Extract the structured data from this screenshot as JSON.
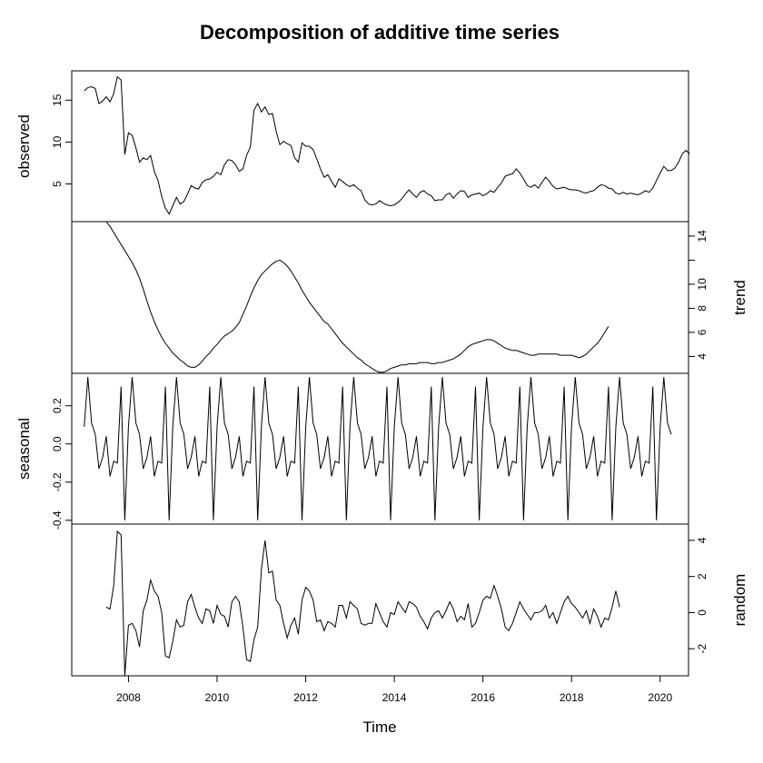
{
  "chart_data": {
    "type": "line",
    "title": "Decomposition of additive time series",
    "xlabel": "Time",
    "xlim": [
      2006.72,
      2020.64
    ],
    "xticks": [
      "2008",
      "2010",
      "2012",
      "2014",
      "2016",
      "2018",
      "2020"
    ],
    "frequency": 12,
    "panels": [
      {
        "name": "observed",
        "ylabel": "observed",
        "axis_side": "left",
        "ylim": [
          0.5,
          18.5
        ],
        "yticks": [
          "5",
          "10",
          "15"
        ],
        "start": 2007.0,
        "values": [
          16.1,
          16.5,
          16.6,
          16.4,
          14.6,
          14.9,
          15.4,
          14.8,
          15.8,
          17.8,
          17.4,
          8.5,
          11.1,
          10.8,
          9.3,
          7.6,
          8.1,
          7.9,
          8.4,
          6.5,
          5.4,
          3.5,
          2.1,
          1.4,
          2.4,
          3.4,
          2.6,
          2.9,
          3.8,
          4.8,
          4.5,
          4.4,
          5.2,
          5.5,
          5.6,
          5.9,
          6.4,
          6.1,
          7.3,
          7.9,
          7.8,
          7.3,
          6.5,
          6.8,
          8.4,
          9.4,
          13.8,
          14.6,
          13.6,
          14.2,
          13.3,
          13.4,
          11.3,
          9.7,
          10.1,
          9.8,
          9.6,
          8.1,
          7.6,
          9.9,
          9.5,
          9.5,
          9.1,
          8.0,
          6.8,
          5.8,
          6.1,
          5.3,
          4.6,
          5.6,
          5.3,
          4.9,
          4.7,
          4.9,
          4.5,
          4.2,
          3.1,
          2.6,
          2.5,
          2.6,
          3.0,
          2.7,
          2.5,
          2.4,
          2.5,
          2.8,
          3.2,
          3.8,
          4.3,
          3.8,
          3.4,
          4.0,
          4.2,
          3.8,
          3.6,
          3.0,
          3.1,
          3.1,
          3.7,
          3.9,
          3.3,
          3.8,
          4.2,
          4.1,
          3.4,
          3.7,
          3.8,
          3.9,
          3.6,
          3.8,
          4.2,
          4.0,
          4.6,
          5.1,
          5.9,
          6.1,
          6.2,
          6.8,
          6.3,
          5.6,
          4.8,
          4.6,
          4.9,
          4.5,
          5.2,
          5.8,
          5.3,
          4.7,
          4.4,
          4.5,
          4.6,
          4.4,
          4.3,
          4.3,
          4.2,
          4.0,
          3.9,
          4.1,
          4.2,
          4.6,
          4.9,
          4.8,
          4.5,
          4.4,
          3.9,
          3.8,
          4.0,
          3.8,
          3.9,
          3.8,
          3.7,
          3.9,
          4.2,
          4.0,
          4.5,
          5.4,
          6.3,
          7.1,
          6.6,
          6.6,
          6.9,
          7.6,
          8.6,
          9.0,
          8.6
        ]
      },
      {
        "name": "trend",
        "ylabel": "trend",
        "axis_side": "right",
        "ylim": [
          2.6,
          15.2
        ],
        "yticks": [
          "4",
          "6",
          "8",
          "10",
          "12",
          "14"
        ],
        "yticks_labeled": [
          "4",
          "6",
          "8",
          "10",
          "14"
        ],
        "start": 2007.5,
        "values": [
          15.2,
          14.8,
          14.3,
          13.8,
          13.3,
          12.8,
          12.3,
          11.8,
          11.2,
          10.5,
          9.6,
          8.6,
          7.7,
          6.9,
          6.2,
          5.6,
          5.1,
          4.7,
          4.3,
          4.0,
          3.7,
          3.5,
          3.2,
          3.1,
          3.1,
          3.3,
          3.6,
          4.0,
          4.3,
          4.7,
          5.0,
          5.4,
          5.7,
          5.9,
          6.1,
          6.4,
          6.8,
          7.5,
          8.2,
          9.0,
          9.7,
          10.3,
          10.8,
          11.1,
          11.4,
          11.7,
          11.9,
          12.0,
          11.8,
          11.5,
          11.1,
          10.6,
          10.1,
          9.5,
          9.0,
          8.5,
          8.1,
          7.7,
          7.3,
          6.9,
          6.7,
          6.3,
          5.9,
          5.5,
          5.1,
          4.8,
          4.5,
          4.2,
          3.9,
          3.7,
          3.4,
          3.2,
          3.0,
          2.8,
          2.7,
          2.7,
          2.8,
          3.0,
          3.1,
          3.2,
          3.3,
          3.3,
          3.4,
          3.4,
          3.4,
          3.5,
          3.5,
          3.5,
          3.4,
          3.4,
          3.5,
          3.5,
          3.6,
          3.7,
          3.8,
          4.0,
          4.2,
          4.5,
          4.8,
          5.0,
          5.1,
          5.2,
          5.3,
          5.4,
          5.4,
          5.3,
          5.1,
          4.9,
          4.7,
          4.6,
          4.5,
          4.5,
          4.4,
          4.3,
          4.2,
          4.1,
          4.1,
          4.2,
          4.2,
          4.2,
          4.2,
          4.2,
          4.2,
          4.1,
          4.1,
          4.1,
          4.1,
          4.0,
          3.9,
          4.0,
          4.2,
          4.5,
          4.8,
          5.1,
          5.5,
          6.0,
          6.5
        ]
      },
      {
        "name": "seasonal",
        "ylabel": "seasonal",
        "axis_side": "left",
        "ylim": [
          -0.42,
          0.37
        ],
        "yticks": [
          "-0.4",
          "-0.2",
          "0.0",
          "0.2"
        ],
        "start": 2007.0,
        "pattern": [
          0.09,
          0.35,
          0.11,
          0.05,
          -0.13,
          -0.07,
          0.04,
          -0.17,
          -0.09,
          -0.1,
          0.3,
          -0.4
        ]
      },
      {
        "name": "random",
        "ylabel": "random",
        "axis_side": "right",
        "ylim": [
          -3.5,
          4.9
        ],
        "yticks": [
          "-2",
          "0",
          "2",
          "4"
        ],
        "start": 2007.5,
        "values": [
          0.3,
          0.2,
          1.5,
          4.5,
          4.3,
          -3.5,
          -0.7,
          -0.6,
          -1.0,
          -1.9,
          0.1,
          0.7,
          1.8,
          1.2,
          0.9,
          0.0,
          -2.4,
          -2.5,
          -1.6,
          -0.4,
          -0.8,
          -0.7,
          0.6,
          1.0,
          0.3,
          -0.3,
          -0.6,
          0.2,
          0.1,
          -0.6,
          0.4,
          -0.1,
          -0.2,
          -0.8,
          0.6,
          0.9,
          0.6,
          -0.8,
          -2.6,
          -2.7,
          -1.5,
          -0.8,
          2.4,
          4.0,
          2.2,
          2.3,
          0.7,
          0.4,
          -0.6,
          -1.4,
          -0.7,
          -0.3,
          -1.2,
          0.7,
          1.4,
          1.2,
          0.7,
          -0.5,
          -0.4,
          -1.0,
          -0.5,
          -0.6,
          -0.8,
          0.4,
          0.4,
          -0.3,
          0.6,
          0.4,
          0.2,
          -0.6,
          -0.7,
          -0.6,
          -0.6,
          0.5,
          0.0,
          -0.5,
          -0.8,
          0.0,
          -0.1,
          0.6,
          0.3,
          0.0,
          0.6,
          0.5,
          0.3,
          -0.2,
          -0.5,
          -0.9,
          -0.3,
          0.0,
          0.1,
          -0.3,
          0.1,
          0.6,
          0.2,
          -0.5,
          -0.2,
          -0.4,
          0.5,
          -0.8,
          -0.6,
          0.0,
          0.7,
          0.9,
          0.8,
          1.5,
          0.9,
          0.2,
          -0.8,
          -1.0,
          -0.6,
          0.0,
          0.6,
          0.2,
          -0.1,
          -0.4,
          0.0,
          0.0,
          0.1,
          0.4,
          -0.3,
          0.0,
          -0.6,
          0.0,
          0.6,
          0.9,
          0.5,
          0.3,
          0.0,
          -0.3,
          0.1,
          -0.6,
          0.2,
          -0.2,
          -0.8,
          -0.3,
          -0.4,
          0.3,
          1.2,
          0.3
        ]
      }
    ]
  }
}
